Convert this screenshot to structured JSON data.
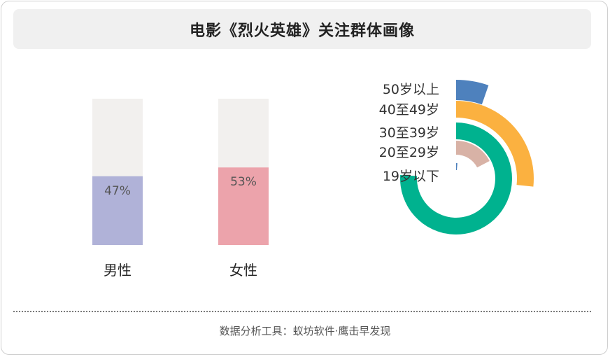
{
  "title": "电影《烈火英雄》关注群体画像",
  "footer": {
    "prefix": "数据分析工具：",
    "tool": "蚁坊软件",
    "separator": "·",
    "product": "鹰击早发现"
  },
  "chart_data": [
    {
      "type": "bar",
      "categories": [
        "男性",
        "女性"
      ],
      "values": [
        47,
        53
      ],
      "value_labels": [
        "47%",
        "53%"
      ],
      "ylim": [
        0,
        100
      ],
      "colors": [
        "#b0b2d8",
        "#eca3ab"
      ],
      "track_color": "#f2f0ee"
    },
    {
      "type": "radial-bar",
      "categories": [
        "50岁以上",
        "40至49岁",
        "30至39岁",
        "20至29岁",
        "19岁以下"
      ],
      "values": [
        4,
        20,
        57,
        13,
        1
      ],
      "colors": [
        "#4e81bd",
        "#fbb140",
        "#00b28f",
        "#d8b2a6",
        "#4e81bd"
      ]
    }
  ]
}
